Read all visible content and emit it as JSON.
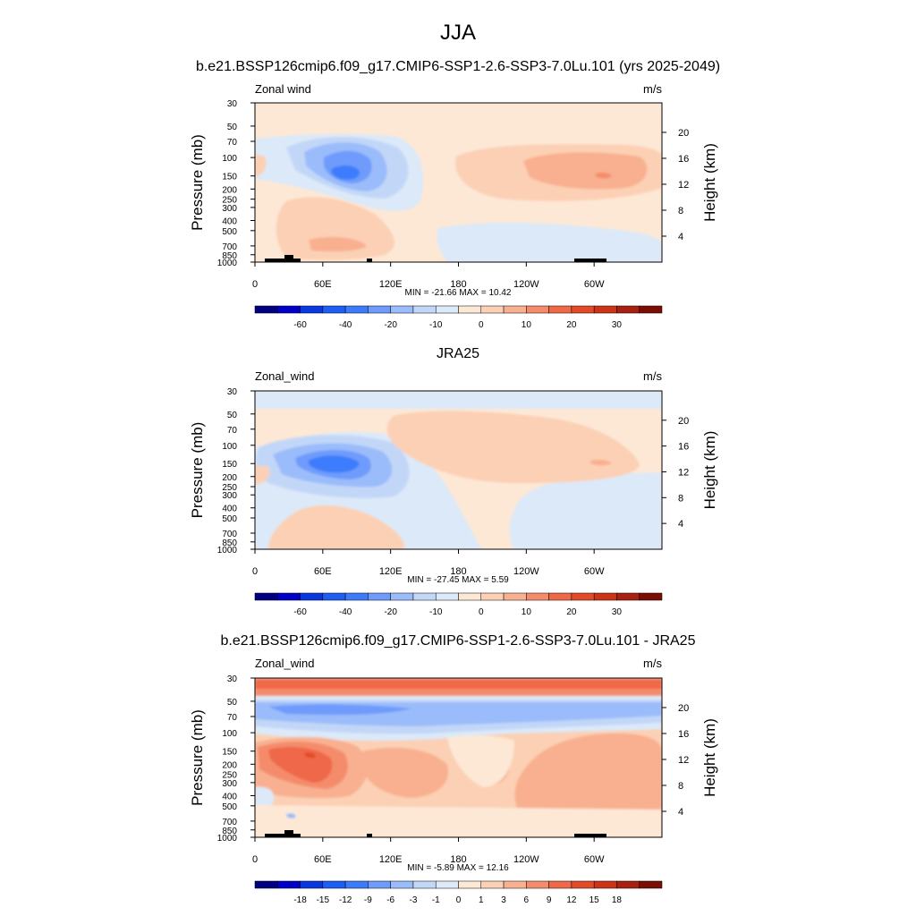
{
  "page": {
    "title": "JJA",
    "subtitle": "b.e21.BSSP126cmip6.f09_g17.CMIP6-SSP1-2.6-SSP3-7.0Lu.101 (yrs 2025-2049)"
  },
  "chart_data": [
    {
      "type": "contour",
      "title": "",
      "variable_label": "Zonal wind",
      "units": "m/s",
      "ylabel": "Pressure (mb)",
      "ylabel_right": "Height (km)",
      "xticks": [
        "0",
        "60E",
        "120E",
        "180",
        "120W",
        "60W"
      ],
      "yticks": [
        "30",
        "50",
        "70",
        "100",
        "150",
        "200",
        "250",
        "300",
        "400",
        "500",
        "700",
        "850",
        "1000"
      ],
      "right_ticks": [
        "20",
        "16",
        "12",
        "8",
        "4"
      ],
      "stats": "MIN = -21.66  MAX =  10.42",
      "min": -21.66,
      "max": 10.42,
      "colorbar_labels": [
        "-60",
        "-40",
        "-20",
        "-10",
        "0",
        "10",
        "20",
        "30"
      ],
      "colorbar_colors": [
        "#000080",
        "#0000c8",
        "#0a38e0",
        "#1e5ef5",
        "#3c7cfc",
        "#6e9bfc",
        "#9bbcfa",
        "#c2d7f8",
        "#dce9f8",
        "#fde8d6",
        "#fcd0b4",
        "#f8b090",
        "#f48c6c",
        "#ef6848",
        "#e34a28",
        "#cc3418",
        "#a82010",
        "#7a0e04"
      ],
      "low_levels": [
        "#dce9f8",
        "#c2d7f8",
        "#9bbcfa",
        "#6e9bfc",
        "#3c7cfc"
      ],
      "high_levels": [
        "#fde8d6",
        "#fcd0b4",
        "#f8b090",
        "#f48c6c"
      ]
    },
    {
      "type": "contour",
      "title": "JRA25",
      "variable_label": "Zonal_wind",
      "units": "m/s",
      "ylabel": "Pressure (mb)",
      "ylabel_right": "Height (km)",
      "xticks": [
        "0",
        "60E",
        "120E",
        "180",
        "120W",
        "60W"
      ],
      "yticks": [
        "30",
        "50",
        "70",
        "100",
        "150",
        "200",
        "250",
        "300",
        "400",
        "500",
        "700",
        "850",
        "1000"
      ],
      "right_ticks": [
        "20",
        "16",
        "12",
        "8",
        "4"
      ],
      "stats": "MIN = -27.45  MAX =   5.59",
      "min": -27.45,
      "max": 5.59,
      "colorbar_labels": [
        "-60",
        "-40",
        "-20",
        "-10",
        "0",
        "10",
        "20",
        "30"
      ],
      "colorbar_colors": [
        "#000080",
        "#0000c8",
        "#0a38e0",
        "#1e5ef5",
        "#3c7cfc",
        "#6e9bfc",
        "#9bbcfa",
        "#c2d7f8",
        "#dce9f8",
        "#fde8d6",
        "#fcd0b4",
        "#f8b090",
        "#f48c6c",
        "#ef6848",
        "#e34a28",
        "#cc3418",
        "#a82010",
        "#7a0e04"
      ],
      "low_levels": [
        "#dce9f8",
        "#c2d7f8",
        "#9bbcfa",
        "#6e9bfc",
        "#3c7cfc"
      ],
      "high_levels": [
        "#fde8d6",
        "#fcd0b4",
        "#f8b090"
      ]
    },
    {
      "type": "contour",
      "title": "b.e21.BSSP126cmip6.f09_g17.CMIP6-SSP1-2.6-SSP3-7.0Lu.101 - JRA25",
      "variable_label": "Zonal_wind",
      "units": "m/s",
      "ylabel": "Pressure (mb)",
      "ylabel_right": "Height (km)",
      "xticks": [
        "0",
        "60E",
        "120E",
        "180",
        "120W",
        "60W"
      ],
      "yticks": [
        "30",
        "50",
        "70",
        "100",
        "150",
        "200",
        "250",
        "300",
        "400",
        "500",
        "700",
        "850",
        "1000"
      ],
      "right_ticks": [
        "20",
        "16",
        "12",
        "8",
        "4"
      ],
      "stats": "MIN = -5.89  MAX =  12.16",
      "min": -5.89,
      "max": 12.16,
      "colorbar_labels": [
        "-18",
        "-15",
        "-12",
        "-9",
        "-6",
        "-3",
        "-1",
        "0",
        "1",
        "3",
        "6",
        "9",
        "12",
        "15",
        "18"
      ],
      "colorbar_colors": [
        "#000080",
        "#0000c8",
        "#0a38e0",
        "#1e5ef5",
        "#3c7cfc",
        "#6e9bfc",
        "#9bbcfa",
        "#c2d7f8",
        "#dce9f8",
        "#fde8d6",
        "#fcd0b4",
        "#f8b090",
        "#f48c6c",
        "#ef6848",
        "#e34a28",
        "#cc3418",
        "#a82010",
        "#7a0e04"
      ],
      "low_levels": [
        "#dce9f8",
        "#c2d7f8",
        "#9bbcfa",
        "#6e9bfc"
      ],
      "high_levels": [
        "#fde8d6",
        "#fcd0b4",
        "#f8b090",
        "#f48c6c",
        "#ef6848",
        "#e34a28"
      ]
    }
  ]
}
